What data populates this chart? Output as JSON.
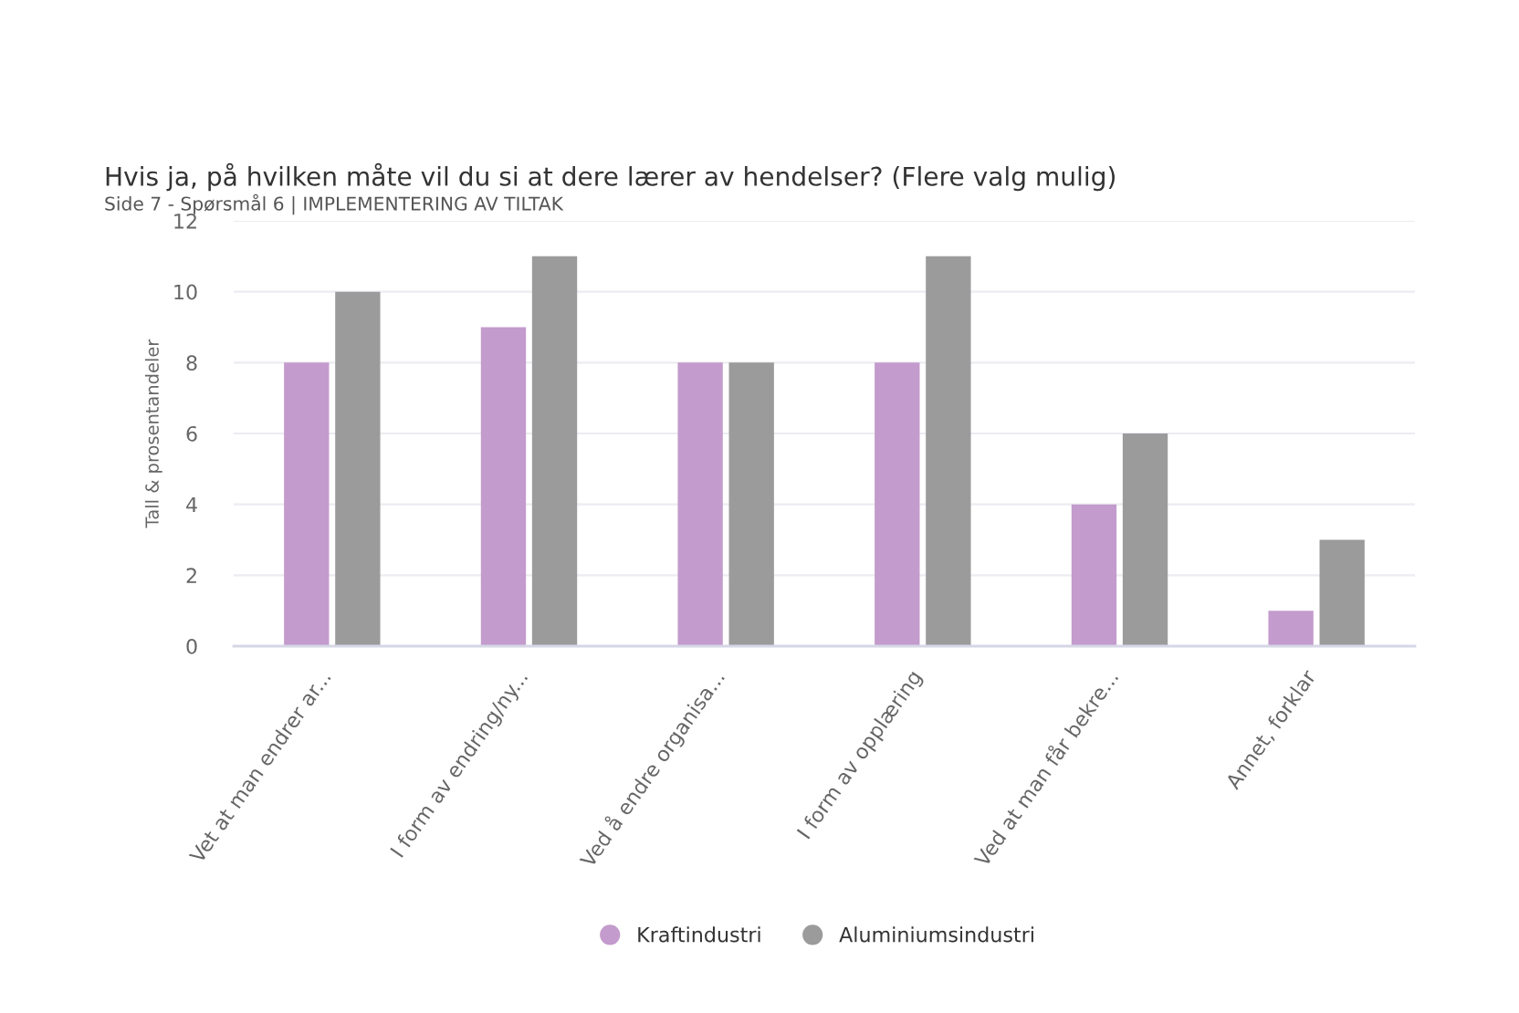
{
  "chart_data": {
    "type": "bar",
    "title": "Hvis ja, på hvilken måte vil du si at dere lærer av hendelser? (Flere valg mulig)",
    "subtitle": "Side 7 - Spørsmål 6 | IMPLEMENTERING AV TILTAK",
    "ylabel": "Tall & prosentandeler",
    "categories": [
      "Vet at man endrer ar...",
      "I form av endring/ny...",
      "Ved å endre organisa...",
      "I form av opplæring",
      "Ved at man får bekre...",
      "Annet, forklar"
    ],
    "series": [
      {
        "name": "Kraftindustri",
        "color": "#c39bcc",
        "values": [
          8,
          9,
          8,
          8,
          4,
          1
        ]
      },
      {
        "name": "Aluminiumsindustri",
        "color": "#9b9b9b",
        "values": [
          10,
          11,
          8,
          11,
          6,
          3
        ]
      }
    ],
    "ylim": [
      0,
      12
    ],
    "yticks": [
      0,
      2,
      4,
      6,
      8,
      10,
      12
    ],
    "grid": "y",
    "legend": "bottom"
  }
}
